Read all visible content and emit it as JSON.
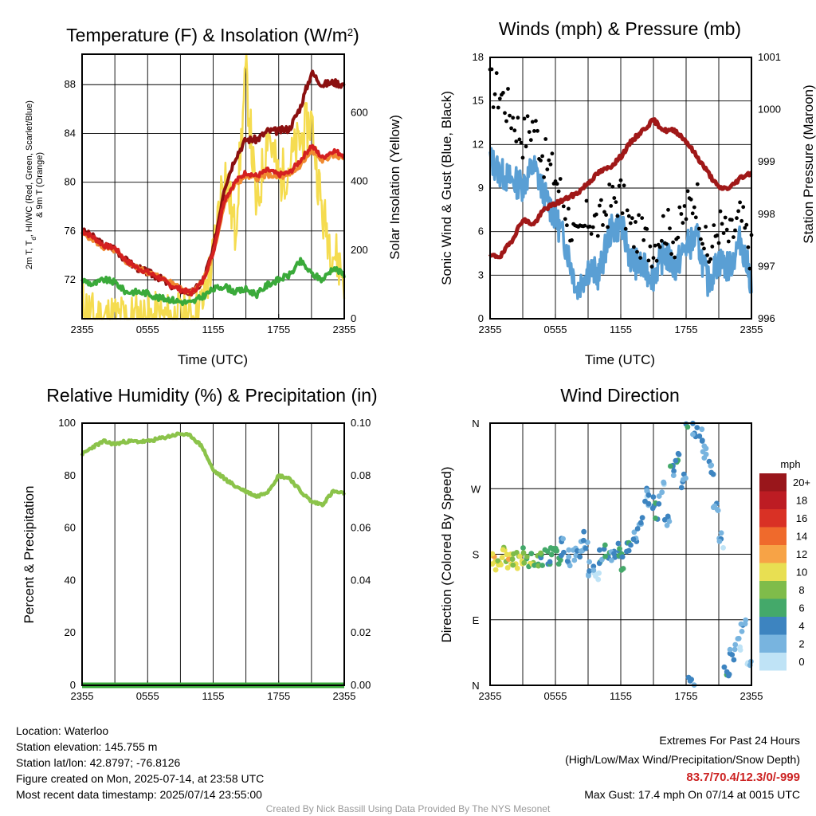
{
  "colors": {
    "t2m": "#d42020",
    "td": "#3aaa3a",
    "hi": "#8b1010",
    "t9m": "#f08a30",
    "solar": "#f5dc50",
    "wind": "#5a9fd4",
    "gust": "#000000",
    "pressure": "#a01818",
    "rh": "#8bc34a",
    "precip": "#3aaa3a",
    "credit": "#999999",
    "extremes": "#cc2222"
  },
  "x_ticks": [
    "2355",
    "0555",
    "1155",
    "1755",
    "2355"
  ],
  "chart_data": [
    {
      "id": "temperature",
      "type": "line",
      "title": "Temperature (F) & Insolation (W/m²)",
      "xlabel": "Time (UTC)",
      "ylabel": "2m T, Td, HI/WC (Red, Green, Scarlet/Blue) & 9m T (Orange)",
      "ylabel_right": "Solar Insolation (Yellow)",
      "ylim": [
        68.8,
        90.5
      ],
      "yticks": [
        72,
        76,
        80,
        84,
        88
      ],
      "ylim_right": [
        0,
        770
      ],
      "yticks_right": [
        0,
        200,
        400,
        600
      ],
      "x_hours": [
        0,
        1,
        2,
        3,
        4,
        5,
        6,
        7,
        8,
        9,
        10,
        11,
        12,
        13,
        14,
        15,
        16,
        17,
        18,
        19,
        20,
        21,
        22,
        23,
        24
      ],
      "series": [
        {
          "name": "2m T",
          "axis": "left",
          "values": [
            76.0,
            75.5,
            74.8,
            74.6,
            73.6,
            73.0,
            72.6,
            72.2,
            71.6,
            71.2,
            70.9,
            71.8,
            74.2,
            78.5,
            80.0,
            80.8,
            80.5,
            81.0,
            80.6,
            80.8,
            81.8,
            83.0,
            82.0,
            82.6,
            82.2
          ]
        },
        {
          "name": "Td",
          "axis": "left",
          "values": [
            72.0,
            71.6,
            72.0,
            71.8,
            71.0,
            71.0,
            70.9,
            70.5,
            70.4,
            70.2,
            70.1,
            70.6,
            71.2,
            71.5,
            71.0,
            71.2,
            70.8,
            71.6,
            72.0,
            72.4,
            73.5,
            72.5,
            72.0,
            73.0,
            72.4
          ]
        },
        {
          "name": "HI/WC",
          "axis": "left",
          "values": [
            76.0,
            75.5,
            74.8,
            74.6,
            73.6,
            73.0,
            72.6,
            72.2,
            71.6,
            71.2,
            70.9,
            71.8,
            74.4,
            79.5,
            82.0,
            83.5,
            83.5,
            84.2,
            84.2,
            84.4,
            86.2,
            89.0,
            88.0,
            88.2,
            88.0
          ]
        },
        {
          "name": "9m T",
          "axis": "left",
          "values": [
            75.8,
            75.3,
            74.6,
            74.4,
            73.5,
            73.0,
            72.6,
            72.3,
            71.8,
            71.4,
            71.0,
            71.8,
            74.0,
            78.2,
            79.8,
            80.5,
            80.3,
            80.6,
            80.4,
            80.5,
            81.4,
            82.5,
            81.8,
            82.2,
            82.0
          ]
        },
        {
          "name": "Solar",
          "axis": "right",
          "values": [
            50,
            0,
            0,
            0,
            0,
            0,
            0,
            0,
            0,
            0,
            0,
            40,
            180,
            450,
            250,
            720,
            300,
            560,
            400,
            450,
            520,
            580,
            300,
            200,
            120
          ]
        }
      ]
    },
    {
      "id": "winds",
      "type": "line",
      "title": "Winds (mph) & Pressure (mb)",
      "xlabel": "Time (UTC)",
      "ylabel": "Sonic Wind & Gust (Blue, Black)",
      "ylabel_right": "Station Pressure (Maroon)",
      "ylim": [
        0,
        18
      ],
      "yticks": [
        0,
        3,
        6,
        9,
        12,
        15,
        18
      ],
      "ylim_right": [
        996,
        1001
      ],
      "yticks_right": [
        996,
        997,
        998,
        999,
        1000,
        1001
      ],
      "x_hours": [
        0,
        1,
        2,
        3,
        4,
        5,
        6,
        7,
        8,
        9,
        10,
        11,
        12,
        13,
        14,
        15,
        16,
        17,
        18,
        19,
        20,
        21,
        22,
        23,
        24
      ],
      "series": [
        {
          "name": "Wind",
          "axis": "left",
          "values": [
            11.0,
            10.0,
            9.5,
            9.2,
            10.5,
            8.5,
            7.0,
            5.0,
            2.0,
            3.5,
            3.0,
            6.0,
            6.5,
            4.0,
            3.5,
            3.0,
            4.5,
            3.5,
            5.0,
            5.5,
            2.5,
            4.0,
            3.5,
            5.5,
            2.5
          ]
        },
        {
          "name": "Gust",
          "axis": "left",
          "values": [
            16.0,
            15.5,
            14.0,
            12.5,
            13.5,
            11.0,
            9.8,
            7.5,
            5.0,
            7.0,
            6.5,
            8.0,
            8.5,
            6.0,
            5.5,
            5.0,
            6.5,
            5.5,
            7.5,
            8.5,
            4.0,
            6.5,
            5.5,
            7.0,
            4.5
          ]
        },
        {
          "name": "Pressure",
          "axis": "right",
          "values": [
            997.2,
            997.2,
            997.5,
            997.9,
            997.8,
            998.1,
            998.2,
            998.3,
            998.4,
            998.6,
            998.8,
            998.9,
            999.1,
            999.4,
            999.6,
            999.8,
            999.6,
            999.6,
            999.4,
            999.1,
            998.8,
            998.5,
            998.5,
            998.7,
            998.8
          ]
        }
      ]
    },
    {
      "id": "humidity",
      "type": "line",
      "title": "Relative Humidity (%) & Precipitation (in)",
      "xlabel": "",
      "ylabel": "Percent & Precipitation",
      "ylim": [
        0,
        100
      ],
      "yticks": [
        0,
        20,
        40,
        60,
        80,
        100
      ],
      "ylim_right": [
        0,
        0.1
      ],
      "yticks_right": [
        "0.00",
        "0.02",
        "0.04",
        "0.06",
        "0.08",
        "0.10"
      ],
      "x_hours": [
        0,
        1,
        2,
        3,
        4,
        5,
        6,
        7,
        8,
        9,
        10,
        11,
        12,
        13,
        14,
        15,
        16,
        17,
        18,
        19,
        20,
        21,
        22,
        23,
        24
      ],
      "series": [
        {
          "name": "RH",
          "axis": "left",
          "values": [
            88,
            91,
            93,
            92,
            93,
            93,
            93,
            94,
            95,
            96,
            95,
            91,
            82,
            79,
            76,
            74,
            72,
            74,
            80,
            79,
            74,
            70,
            69,
            74,
            73
          ]
        },
        {
          "name": "Precip",
          "axis": "right",
          "values": [
            0,
            0,
            0,
            0,
            0,
            0,
            0,
            0,
            0,
            0,
            0,
            0,
            0,
            0,
            0,
            0,
            0,
            0,
            0,
            0,
            0,
            0,
            0,
            0,
            0
          ]
        }
      ]
    },
    {
      "id": "wind_direction",
      "type": "scatter",
      "title": "Wind Direction",
      "ylabel": "Direction (Colored By Speed)",
      "yticks": [
        "N",
        "E",
        "S",
        "W",
        "N"
      ],
      "ylim": [
        0,
        360
      ],
      "legend_title": "mph",
      "legend_labels": [
        "20+",
        "18",
        "16",
        "14",
        "12",
        "10",
        "8",
        "6",
        "4",
        "2",
        "0"
      ],
      "legend_colors": [
        "#99161b",
        "#bd1c23",
        "#d93125",
        "#ef6a2c",
        "#f7a346",
        "#e8df52",
        "#7fbc4a",
        "#44a96a",
        "#3d84c0",
        "#78b4df",
        "#bfe3f6"
      ],
      "points_hours": [
        0,
        0.5,
        1,
        1.5,
        2,
        2.5,
        3,
        3.5,
        4,
        4.5,
        5,
        5.5,
        6,
        6.5,
        7,
        7.5,
        8,
        8.5,
        9,
        9.5,
        10,
        10.5,
        11,
        11.5,
        12,
        12.5,
        13,
        13.5,
        14,
        14.5,
        15,
        15.5,
        16,
        16.5,
        17,
        17.5,
        18,
        18.5,
        19,
        19.5,
        20,
        20.5,
        21,
        21.5,
        22,
        22.5,
        23,
        23.5
      ],
      "points_dir": [
        175,
        170,
        178,
        172,
        176,
        168,
        180,
        174,
        176,
        172,
        175,
        185,
        178,
        190,
        176,
        182,
        186,
        200,
        160,
        150,
        176,
        181,
        172,
        184,
        170,
        190,
        205,
        220,
        260,
        250,
        240,
        270,
        230,
        290,
        310,
        280,
        360,
        350,
        345,
        320,
        300,
        250,
        200,
        15,
        40,
        60,
        80,
        30
      ],
      "points_speed": [
        11,
        10,
        9,
        10,
        8,
        9,
        7,
        8,
        7,
        6,
        5,
        7,
        6,
        4,
        3,
        2,
        3,
        3,
        2,
        1,
        4,
        5,
        3,
        6,
        5,
        4,
        3,
        4,
        2,
        3,
        4,
        2,
        3,
        4,
        5,
        3,
        4,
        3,
        4,
        2,
        3,
        2,
        2,
        4,
        3,
        2,
        3,
        2
      ]
    }
  ],
  "footer": {
    "location": "Location: Waterloo",
    "elevation": "Station elevation: 145.755 m",
    "latlon": "Station lat/lon: 42.8797; -76.8126",
    "created": "Figure created on Mon, 2025-07-14, at 23:58 UTC",
    "recent": "Most recent data timestamp: 2025/07/14 23:55:00",
    "extremes_title": "Extremes For Past 24 Hours",
    "extremes_subtitle": "(High/Low/Max Wind/Precipitation/Snow Depth)",
    "extremes_values": "83.7/70.4/12.3/0/-999",
    "max_gust": "Max Gust: 17.4 mph On 07/14 at 0015 UTC",
    "credit": "Created By Nick Bassill Using Data Provided By The NYS Mesonet"
  }
}
